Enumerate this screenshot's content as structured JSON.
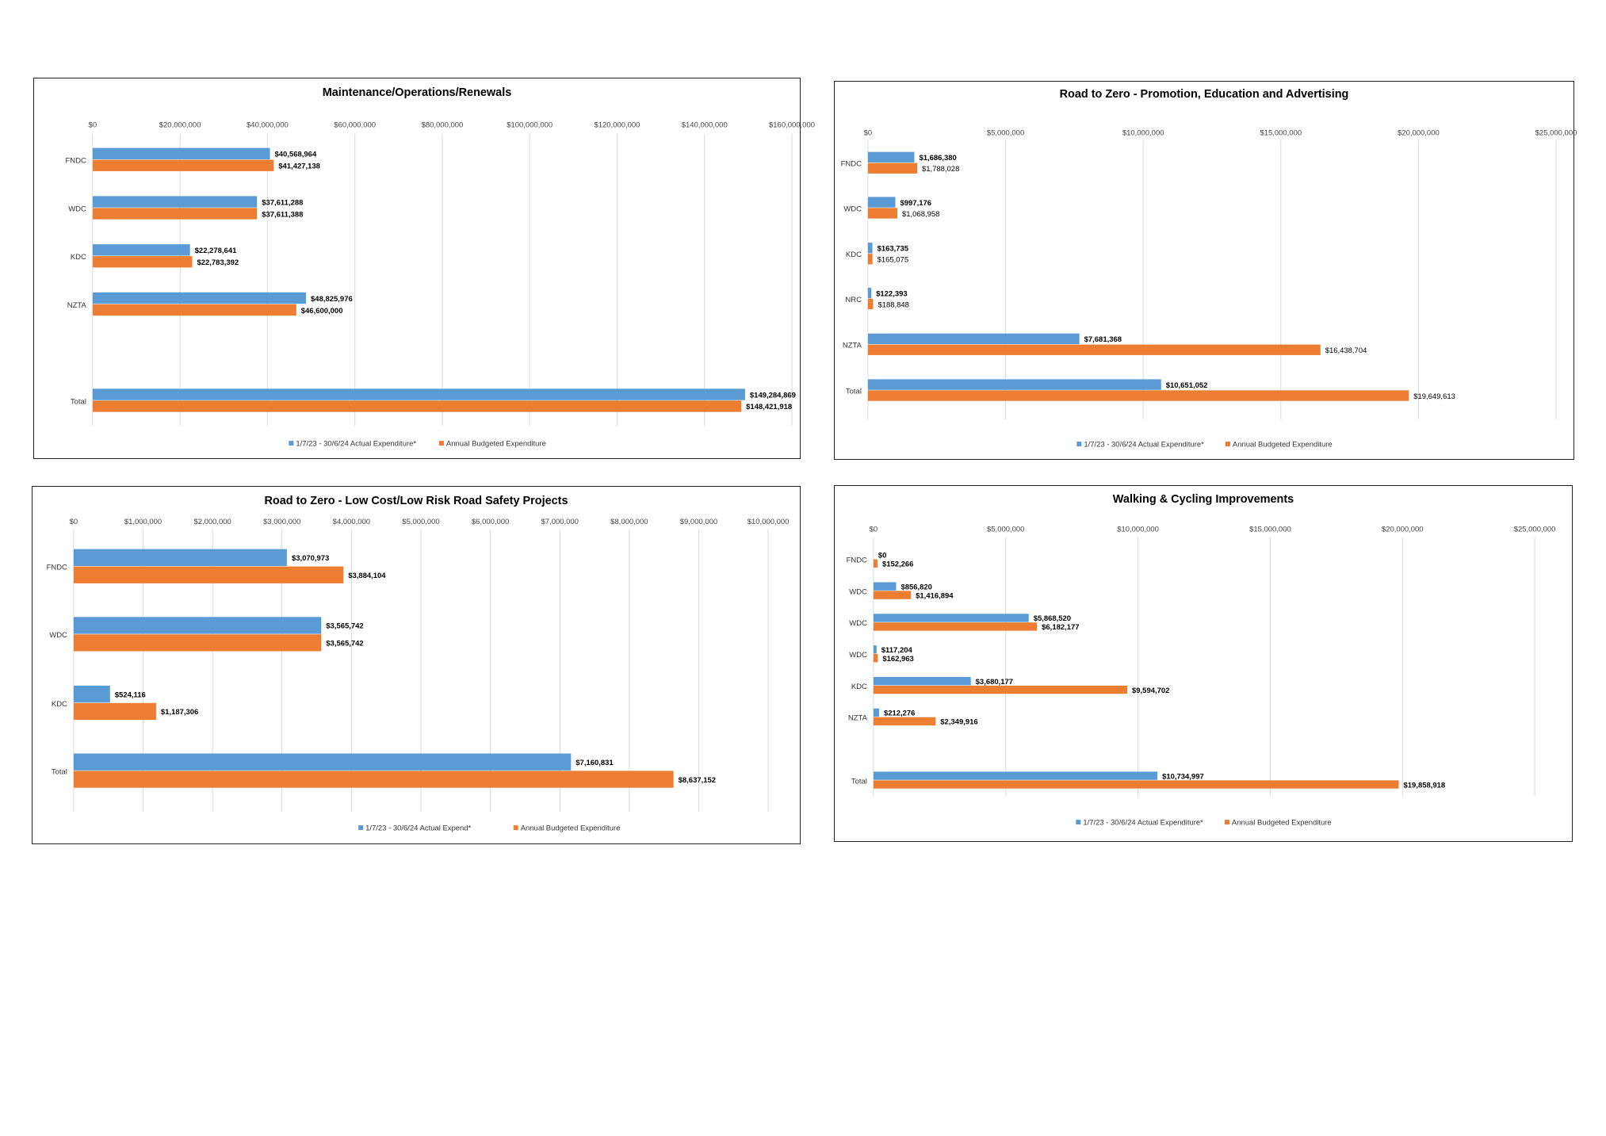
{
  "colors": {
    "actual": "#5b9bd5",
    "budget": "#ed7d31",
    "grid": "#d9d9d9",
    "border": "#222222"
  },
  "chart_data": [
    {
      "type": "bar",
      "orientation": "horizontal",
      "title": "Maintenance/Operations/Renewals",
      "categories": [
        "FNDC",
        "WDC",
        "KDC",
        "NZTA",
        "Total"
      ],
      "xlim": [
        0,
        160000000
      ],
      "tick_labels": [
        "$0",
        "$20,000,000",
        "$40,000,000",
        "$60,000,000",
        "$80,000,000",
        "$100,000,000",
        "$120,000,000",
        "$140,000,000",
        "$160,000,000"
      ],
      "series": [
        {
          "name": "1/7/23 - 30/6/24 Actual Expenditure*",
          "color": "#5b9bd5",
          "values": [
            40568964,
            37611288,
            22278641,
            48825976,
            149284869
          ],
          "labels": [
            "$40,568,964",
            "$37,611,288",
            "$22,278,641",
            "$48,825,976",
            "$149,284,869"
          ]
        },
        {
          "name": "Annual Budgeted Expenditure",
          "color": "#ed7d31",
          "values": [
            41427138,
            37611388,
            22783392,
            46600000,
            148421918
          ],
          "labels": [
            "$41,427,138",
            "$37,611,388",
            "$22,783,392",
            "$46,600,000",
            "$148,421,918"
          ]
        }
      ],
      "legend": "bottom",
      "grid": true
    },
    {
      "type": "bar",
      "orientation": "horizontal",
      "title": "Road to Zero - Promotion, Education and Advertising",
      "categories": [
        "FNDC",
        "WDC",
        "KDC",
        "NRC",
        "NZTA",
        "Total"
      ],
      "xlim": [
        0,
        25000000
      ],
      "tick_labels": [
        "$0",
        "$5,000,000",
        "$10,000,000",
        "$15,000,000",
        "$20,000,000",
        "$25,000,000"
      ],
      "series": [
        {
          "name": "1/7/23 - 30/6/24 Actual Expenditure*",
          "color": "#5b9bd5",
          "values": [
            1686380,
            997176,
            163735,
            122393,
            7681368,
            10651052
          ],
          "labels": [
            "$1,686,380",
            "$997,176",
            "$163,735",
            "$122,393",
            "$7,681,368",
            "$10,651,052"
          ]
        },
        {
          "name": "Annual Budgeted Expenditure",
          "color": "#ed7d31",
          "values": [
            1788028,
            1068958,
            165075,
            188848,
            16438704,
            19649613
          ],
          "labels": [
            "$1,788,028",
            "$1,068,958",
            "$165,075",
            "$188,848",
            "$16,438,704",
            "$19,649,613"
          ]
        }
      ],
      "legend": "bottom",
      "grid": true
    },
    {
      "type": "bar",
      "orientation": "horizontal",
      "title": "Road to Zero - Low Cost/Low Risk Road Safety Projects",
      "categories": [
        "FNDC",
        "WDC",
        "KDC",
        "Total"
      ],
      "xlim": [
        0,
        10000000
      ],
      "tick_labels": [
        "$0",
        "$1,000,000",
        "$2,000,000",
        "$3,000,000",
        "$4,000,000",
        "$5,000,000",
        "$6,000,000",
        "$7,000,000",
        "$8,000,000",
        "$9,000,000",
        "$10,000,000"
      ],
      "series": [
        {
          "name": "1/7/23 - 30/6/24 Actual Expend*",
          "color": "#5b9bd5",
          "values": [
            3070973,
            3565742,
            524116,
            7160831
          ],
          "labels": [
            "$3,070,973",
            "$3,565,742",
            "$524,116",
            "$7,160,831"
          ]
        },
        {
          "name": "Annual Budgeted Expenditure",
          "color": "#ed7d31",
          "values": [
            3884104,
            3565742,
            1187306,
            8637152
          ],
          "labels": [
            "$3,884,104",
            "$3,565,742",
            "$1,187,306",
            "$8,637,152"
          ]
        }
      ],
      "legend": "bottom",
      "grid": true
    },
    {
      "type": "bar",
      "orientation": "horizontal",
      "title": "Walking & Cycling Improvements",
      "categories": [
        "FNDC",
        "WDC",
        "WDC",
        "WDC",
        "KDC",
        "NZTA",
        "Total"
      ],
      "xlim": [
        0,
        25000000
      ],
      "tick_labels": [
        "$0",
        "$5,000,000",
        "$10,000,000",
        "$15,000,000",
        "$20,000,000",
        "$25,000,000"
      ],
      "series": [
        {
          "name": "1/7/23 - 30/6/24 Actual Expenditure*",
          "color": "#5b9bd5",
          "values": [
            0,
            856820,
            5868520,
            117204,
            3680177,
            212276,
            10734997
          ],
          "labels": [
            "$0",
            "$856,820",
            "$5,868,520",
            "$117,204",
            "$3,680,177",
            "$212,276",
            "$10,734,997"
          ]
        },
        {
          "name": "Annual Budgeted Expenditure",
          "color": "#ed7d31",
          "values": [
            152266,
            1416894,
            6182177,
            162963,
            9594702,
            2349916,
            19858918
          ],
          "labels": [
            "$152,266",
            "$1,416,894",
            "$6,182,177",
            "$162,963",
            "$9,594,702",
            "$2,349,916",
            "$19,858,918"
          ]
        }
      ],
      "legend": "bottom",
      "grid": true
    }
  ]
}
